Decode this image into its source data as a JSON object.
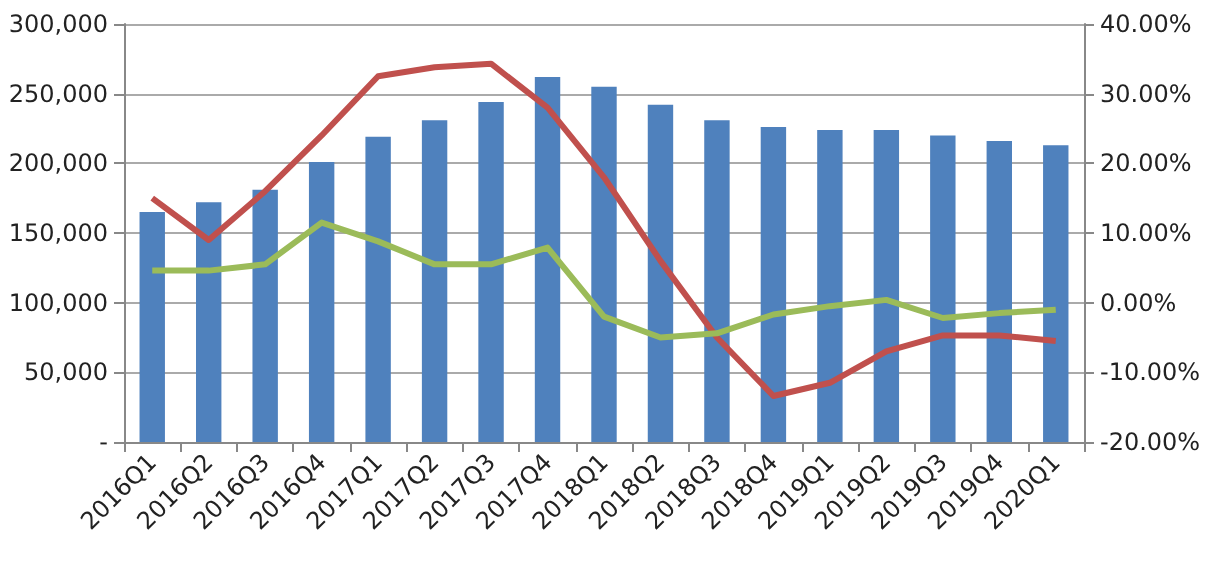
{
  "chart_data": {
    "type": "bar",
    "categories": [
      "2016Q1",
      "2016Q2",
      "2016Q3",
      "2016Q4",
      "2017Q1",
      "2017Q2",
      "2017Q3",
      "2017Q4",
      "2018Q1",
      "2018Q2",
      "2018Q3",
      "2018Q4",
      "2019Q1",
      "2019Q2",
      "2019Q3",
      "2019Q4",
      "2020Q1"
    ],
    "series": [
      {
        "color": "#4f81bd",
        "values": [
          165000,
          172000,
          181000,
          201000,
          219000,
          231000,
          244000,
          262000,
          255000,
          242000,
          231000,
          226000,
          224000,
          224000,
          220000,
          216000,
          213000
        ]
      },
      {
        "type": "line",
        "axis": "y2",
        "color": "#c0504d",
        "values": [
          15,
          9,
          16,
          24,
          32.5,
          33.8,
          34.3,
          28,
          18,
          6,
          -5,
          -13.4,
          -11.5,
          -7,
          -4.7,
          -4.7,
          -5.5
        ]
      },
      {
        "type": "line",
        "axis": "y2",
        "color": "#9bbb59",
        "values": [
          4.6,
          4.6,
          5.5,
          11.5,
          8.8,
          5.5,
          5.5,
          7.9,
          -2,
          -5,
          -4.4,
          -1.7,
          -0.5,
          0.4,
          -2.2,
          -1.5,
          -1
        ]
      }
    ],
    "ylim": [
      0,
      300000
    ],
    "yticks": [
      {
        "value": 0,
        "label": "-"
      },
      {
        "value": 50000,
        "label": "50,000"
      },
      {
        "value": 100000,
        "label": "100,000"
      },
      {
        "value": 150000,
        "label": "150,000"
      },
      {
        "value": 200000,
        "label": "200,000"
      },
      {
        "value": 250000,
        "label": "250,000"
      },
      {
        "value": 300000,
        "label": "300,000"
      }
    ],
    "y2lim": [
      -20,
      40
    ],
    "y2ticks": [
      {
        "value": -20,
        "label": "-20.00%"
      },
      {
        "value": -10,
        "label": "-10.00%"
      },
      {
        "value": 0,
        "label": "0.00%"
      },
      {
        "value": 10,
        "label": "10.00%"
      },
      {
        "value": 20,
        "label": "20.00%"
      },
      {
        "value": 30,
        "label": "30.00%"
      },
      {
        "value": 40,
        "label": "40.00%"
      }
    ],
    "grid": "y",
    "marker": "none"
  }
}
